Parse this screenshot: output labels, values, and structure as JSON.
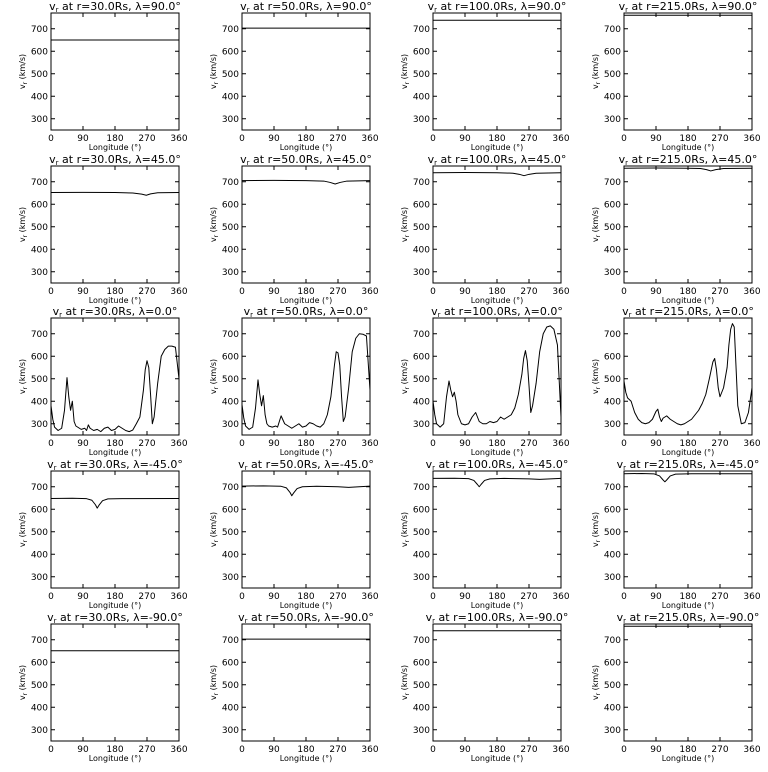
{
  "figure": {
    "background": "#ffffff",
    "line_color": "#000000"
  },
  "chart_data": [
    {
      "type": "line",
      "title": "v",
      "title_sub": "r",
      "title_rest": " at r=30.0Rs, λ=90.0°",
      "xlabel": "Longitude (°)",
      "ylabel": "v",
      "ylabel_sub": "r",
      "ylabel_rest": " (km/s)",
      "xlim": [
        0,
        360
      ],
      "ylim": [
        250,
        770
      ],
      "xticks": [
        0,
        90,
        180,
        270,
        360
      ],
      "yticks": [
        300,
        400,
        500,
        600,
        700
      ],
      "x": [
        0,
        360
      ],
      "y": [
        650,
        650
      ]
    },
    {
      "type": "line",
      "title": "v",
      "title_sub": "r",
      "title_rest": " at r=50.0Rs, λ=90.0°",
      "xlabel": "Longitude (°)",
      "ylabel": "v",
      "ylabel_sub": "r",
      "ylabel_rest": " (km/s)",
      "xlim": [
        0,
        360
      ],
      "ylim": [
        250,
        770
      ],
      "xticks": [
        0,
        90,
        180,
        270,
        360
      ],
      "yticks": [
        300,
        400,
        500,
        600,
        700
      ],
      "x": [
        0,
        360
      ],
      "y": [
        703,
        703
      ]
    },
    {
      "type": "line",
      "title": "v",
      "title_sub": "r",
      "title_rest": " at r=100.0Rs, λ=90.0°",
      "xlabel": "Longitude (°)",
      "ylabel": "v",
      "ylabel_sub": "r",
      "ylabel_rest": " (km/s)",
      "xlim": [
        0,
        360
      ],
      "ylim": [
        250,
        770
      ],
      "xticks": [
        0,
        90,
        180,
        270,
        360
      ],
      "yticks": [
        300,
        400,
        500,
        600,
        700
      ],
      "x": [
        0,
        360
      ],
      "y": [
        738,
        738
      ]
    },
    {
      "type": "line",
      "title": "v",
      "title_sub": "r",
      "title_rest": " at r=215.0Rs, λ=90.0°",
      "xlabel": "Longitude (°)",
      "ylabel": "v",
      "ylabel_sub": "r",
      "ylabel_rest": " (km/s)",
      "xlim": [
        0,
        360
      ],
      "ylim": [
        250,
        770
      ],
      "xticks": [
        0,
        90,
        180,
        270,
        360
      ],
      "yticks": [
        300,
        400,
        500,
        600,
        700
      ],
      "x": [
        0,
        360
      ],
      "y": [
        760,
        760
      ]
    },
    {
      "type": "line",
      "title": "v",
      "title_sub": "r",
      "title_rest": " at r=30.0Rs, λ=45.0°",
      "xlabel": "Longitude (°)",
      "ylabel": "v",
      "ylabel_sub": "r",
      "ylabel_rest": " (km/s)",
      "xlim": [
        0,
        360
      ],
      "ylim": [
        250,
        770
      ],
      "xticks": [
        0,
        90,
        180,
        270,
        360
      ],
      "yticks": [
        300,
        400,
        500,
        600,
        700
      ],
      "x": [
        0,
        90,
        180,
        230,
        255,
        268,
        280,
        300,
        360
      ],
      "y": [
        652,
        653,
        652,
        650,
        645,
        640,
        646,
        651,
        652
      ]
    },
    {
      "type": "line",
      "title": "v",
      "title_sub": "r",
      "title_rest": " at r=50.0Rs, λ=45.0°",
      "xlabel": "Longitude (°)",
      "ylabel": "v",
      "ylabel_sub": "r",
      "ylabel_rest": " (km/s)",
      "xlim": [
        0,
        360
      ],
      "ylim": [
        250,
        770
      ],
      "xticks": [
        0,
        90,
        180,
        270,
        360
      ],
      "yticks": [
        300,
        400,
        500,
        600,
        700
      ],
      "x": [
        0,
        90,
        180,
        230,
        248,
        262,
        276,
        295,
        360
      ],
      "y": [
        705,
        706,
        705,
        703,
        697,
        690,
        697,
        703,
        705
      ]
    },
    {
      "type": "line",
      "title": "v",
      "title_sub": "r",
      "title_rest": " at r=100.0Rs, λ=45.0°",
      "xlabel": "Longitude (°)",
      "ylabel": "v",
      "ylabel_sub": "r",
      "ylabel_rest": " (km/s)",
      "xlim": [
        0,
        360
      ],
      "ylim": [
        250,
        770
      ],
      "xticks": [
        0,
        90,
        180,
        270,
        360
      ],
      "yticks": [
        300,
        400,
        500,
        600,
        700
      ],
      "x": [
        0,
        90,
        180,
        225,
        243,
        256,
        270,
        290,
        360
      ],
      "y": [
        740,
        741,
        740,
        738,
        733,
        727,
        733,
        738,
        740
      ]
    },
    {
      "type": "line",
      "title": "v",
      "title_sub": "r",
      "title_rest": " at r=215.0Rs, λ=45.0°",
      "xlabel": "Longitude (°)",
      "ylabel": "v",
      "ylabel_sub": "r",
      "ylabel_rest": " (km/s)",
      "xlim": [
        0,
        360
      ],
      "ylim": [
        250,
        770
      ],
      "xticks": [
        0,
        90,
        180,
        270,
        360
      ],
      "yticks": [
        300,
        400,
        500,
        600,
        700
      ],
      "x": [
        0,
        90,
        180,
        215,
        232,
        244,
        258,
        280,
        360
      ],
      "y": [
        760,
        761,
        760,
        759,
        754,
        748,
        754,
        759,
        760
      ]
    },
    {
      "type": "line",
      "title": "v",
      "title_sub": "r",
      "title_rest": " at r=30.0Rs, λ=0.0°",
      "xlabel": "Longitude (°)",
      "ylabel": "v",
      "ylabel_sub": "r",
      "ylabel_rest": " (km/s)",
      "xlim": [
        0,
        360
      ],
      "ylim": [
        250,
        770
      ],
      "xticks": [
        0,
        90,
        180,
        270,
        360
      ],
      "yticks": [
        300,
        400,
        500,
        600,
        700
      ],
      "x": [
        0,
        5,
        10,
        20,
        30,
        38,
        45,
        50,
        55,
        60,
        65,
        70,
        75,
        85,
        95,
        100,
        105,
        110,
        120,
        130,
        140,
        150,
        160,
        170,
        180,
        190,
        200,
        210,
        220,
        230,
        240,
        250,
        260,
        265,
        270,
        275,
        280,
        285,
        290,
        300,
        310,
        320,
        330,
        340,
        350,
        360
      ],
      "y": [
        380,
        320,
        285,
        270,
        280,
        360,
        505,
        420,
        360,
        400,
        310,
        290,
        285,
        275,
        280,
        270,
        295,
        280,
        270,
        275,
        265,
        280,
        285,
        270,
        275,
        290,
        280,
        270,
        265,
        272,
        300,
        330,
        450,
        540,
        580,
        550,
        430,
        300,
        330,
        480,
        600,
        630,
        645,
        645,
        640,
        500
      ]
    },
    {
      "type": "line",
      "title": "v",
      "title_sub": "r",
      "title_rest": " at r=50.0Rs, λ=0.0°",
      "xlabel": "Longitude (°)",
      "ylabel": "v",
      "ylabel_sub": "r",
      "ylabel_rest": " (km/s)",
      "xlim": [
        0,
        360
      ],
      "ylim": [
        250,
        770
      ],
      "xticks": [
        0,
        90,
        180,
        270,
        360
      ],
      "yticks": [
        300,
        400,
        500,
        600,
        700
      ],
      "x": [
        0,
        5,
        10,
        20,
        30,
        38,
        45,
        50,
        55,
        60,
        65,
        70,
        75,
        85,
        95,
        100,
        105,
        110,
        120,
        130,
        140,
        150,
        160,
        170,
        180,
        190,
        200,
        210,
        220,
        230,
        240,
        250,
        260,
        265,
        270,
        275,
        280,
        285,
        290,
        300,
        310,
        320,
        330,
        340,
        350,
        360
      ],
      "y": [
        385,
        325,
        290,
        275,
        285,
        370,
        495,
        430,
        380,
        425,
        340,
        300,
        290,
        285,
        290,
        285,
        310,
        335,
        300,
        290,
        280,
        290,
        300,
        285,
        290,
        305,
        300,
        290,
        285,
        300,
        340,
        420,
        560,
        620,
        615,
        560,
        420,
        310,
        330,
        460,
        620,
        680,
        700,
        698,
        690,
        450
      ]
    },
    {
      "type": "line",
      "title": "v",
      "title_sub": "r",
      "title_rest": " at r=100.0Rs, λ=0.0°",
      "xlabel": "Longitude (°)",
      "ylabel": "v",
      "ylabel_sub": "r",
      "ylabel_rest": " (km/s)",
      "xlim": [
        0,
        360
      ],
      "ylim": [
        250,
        770
      ],
      "xticks": [
        0,
        90,
        180,
        270,
        360
      ],
      "yticks": [
        300,
        400,
        500,
        600,
        700
      ],
      "x": [
        0,
        5,
        10,
        20,
        30,
        38,
        45,
        50,
        55,
        60,
        65,
        70,
        80,
        90,
        100,
        110,
        120,
        130,
        140,
        150,
        160,
        170,
        180,
        190,
        200,
        210,
        220,
        230,
        240,
        250,
        255,
        260,
        265,
        270,
        275,
        280,
        290,
        300,
        310,
        320,
        330,
        340,
        350,
        360
      ],
      "y": [
        400,
        340,
        300,
        285,
        300,
        420,
        490,
        450,
        420,
        440,
        400,
        340,
        300,
        295,
        300,
        330,
        350,
        310,
        300,
        300,
        310,
        305,
        310,
        330,
        320,
        330,
        340,
        370,
        430,
        520,
        590,
        625,
        580,
        470,
        350,
        380,
        480,
        620,
        700,
        730,
        735,
        720,
        650,
        330
      ]
    },
    {
      "type": "line",
      "title": "v",
      "title_sub": "r",
      "title_rest": " at r=215.0Rs, λ=0.0°",
      "xlabel": "Longitude (°)",
      "ylabel": "v",
      "ylabel_sub": "r",
      "ylabel_rest": " (km/s)",
      "xlim": [
        0,
        360
      ],
      "ylim": [
        250,
        770
      ],
      "xticks": [
        0,
        90,
        180,
        270,
        360
      ],
      "yticks": [
        300,
        400,
        500,
        600,
        700
      ],
      "x": [
        0,
        5,
        10,
        20,
        30,
        40,
        50,
        60,
        70,
        80,
        90,
        95,
        100,
        105,
        110,
        120,
        130,
        140,
        150,
        160,
        170,
        180,
        190,
        200,
        210,
        220,
        230,
        240,
        250,
        255,
        260,
        265,
        270,
        280,
        290,
        295,
        300,
        305,
        310,
        320,
        330,
        340,
        350,
        360
      ],
      "y": [
        490,
        440,
        415,
        400,
        350,
        320,
        305,
        300,
        305,
        320,
        355,
        365,
        330,
        310,
        325,
        335,
        320,
        310,
        300,
        295,
        300,
        310,
        320,
        340,
        360,
        390,
        430,
        500,
        575,
        590,
        540,
        460,
        420,
        460,
        550,
        650,
        720,
        745,
        730,
        380,
        300,
        305,
        350,
        460
      ]
    },
    {
      "type": "line",
      "title": "v",
      "title_sub": "r",
      "title_rest": " at r=30.0Rs, λ=-45.0°",
      "xlabel": "Longitude (°)",
      "ylabel": "v",
      "ylabel_sub": "r",
      "ylabel_rest": " (km/s)",
      "xlim": [
        0,
        360
      ],
      "ylim": [
        250,
        770
      ],
      "xticks": [
        0,
        90,
        180,
        270,
        360
      ],
      "yticks": [
        300,
        400,
        500,
        600,
        700
      ],
      "x": [
        0,
        60,
        100,
        115,
        125,
        130,
        135,
        145,
        160,
        200,
        360
      ],
      "y": [
        648,
        649,
        647,
        640,
        620,
        605,
        618,
        638,
        646,
        647,
        648
      ]
    },
    {
      "type": "line",
      "title": "v",
      "title_sub": "r",
      "title_rest": " at r=50.0Rs, λ=-45.0°",
      "xlabel": "Longitude (°)",
      "ylabel": "v",
      "ylabel_sub": "r",
      "ylabel_rest": " (km/s)",
      "xlim": [
        0,
        360
      ],
      "ylim": [
        250,
        770
      ],
      "xticks": [
        0,
        90,
        180,
        270,
        360
      ],
      "yticks": [
        300,
        400,
        500,
        600,
        700
      ],
      "x": [
        0,
        60,
        110,
        125,
        135,
        140,
        145,
        155,
        170,
        210,
        270,
        300,
        360
      ],
      "y": [
        703,
        704,
        702,
        695,
        675,
        660,
        672,
        692,
        700,
        702,
        700,
        697,
        703
      ]
    },
    {
      "type": "line",
      "title": "v",
      "title_sub": "r",
      "title_rest": " at r=100.0Rs, λ=-45.0°",
      "xlabel": "Longitude (°)",
      "ylabel": "v",
      "ylabel_sub": "r",
      "ylabel_rest": " (km/s)",
      "xlim": [
        0,
        360
      ],
      "ylim": [
        250,
        770
      ],
      "xticks": [
        0,
        90,
        180,
        270,
        360
      ],
      "yticks": [
        300,
        400,
        500,
        600,
        700
      ],
      "x": [
        0,
        60,
        100,
        115,
        125,
        130,
        135,
        145,
        160,
        200,
        270,
        300,
        360
      ],
      "y": [
        737,
        738,
        736,
        728,
        710,
        700,
        710,
        728,
        735,
        737,
        735,
        733,
        737
      ]
    },
    {
      "type": "line",
      "title": "v",
      "title_sub": "r",
      "title_rest": " at r=215.0Rs, λ=-45.0°",
      "xlabel": "Longitude (°)",
      "ylabel": "v",
      "ylabel_sub": "r",
      "ylabel_rest": " (km/s)",
      "xlim": [
        0,
        360
      ],
      "ylim": [
        250,
        770
      ],
      "xticks": [
        0,
        90,
        180,
        270,
        360
      ],
      "yticks": [
        300,
        400,
        500,
        600,
        700
      ],
      "x": [
        0,
        50,
        85,
        100,
        110,
        115,
        120,
        130,
        145,
        190,
        360
      ],
      "y": [
        758,
        759,
        757,
        748,
        730,
        722,
        730,
        748,
        756,
        758,
        758
      ]
    },
    {
      "type": "line",
      "title": "v",
      "title_sub": "r",
      "title_rest": " at r=30.0Rs, λ=-90.0°",
      "xlabel": "Longitude (°)",
      "ylabel": "v",
      "ylabel_sub": "r",
      "ylabel_rest": " (km/s)",
      "xlim": [
        0,
        360
      ],
      "ylim": [
        250,
        770
      ],
      "xticks": [
        0,
        90,
        180,
        270,
        360
      ],
      "yticks": [
        300,
        400,
        500,
        600,
        700
      ],
      "x": [
        0,
        360
      ],
      "y": [
        651,
        651
      ]
    },
    {
      "type": "line",
      "title": "v",
      "title_sub": "r",
      "title_rest": " at r=50.0Rs, λ=-90.0°",
      "xlabel": "Longitude (°)",
      "ylabel": "v",
      "ylabel_sub": "r",
      "ylabel_rest": " (km/s)",
      "xlim": [
        0,
        360
      ],
      "ylim": [
        250,
        770
      ],
      "xticks": [
        0,
        90,
        180,
        270,
        360
      ],
      "yticks": [
        300,
        400,
        500,
        600,
        700
      ],
      "x": [
        0,
        360
      ],
      "y": [
        703,
        703
      ]
    },
    {
      "type": "line",
      "title": "v",
      "title_sub": "r",
      "title_rest": " at r=100.0Rs, λ=-90.0°",
      "xlabel": "Longitude (°)",
      "ylabel": "v",
      "ylabel_sub": "r",
      "ylabel_rest": " (km/s)",
      "xlim": [
        0,
        360
      ],
      "ylim": [
        250,
        770
      ],
      "xticks": [
        0,
        90,
        180,
        270,
        360
      ],
      "yticks": [
        300,
        400,
        500,
        600,
        700
      ],
      "x": [
        0,
        360
      ],
      "y": [
        740,
        740
      ]
    },
    {
      "type": "line",
      "title": "v",
      "title_sub": "r",
      "title_rest": " at r=215.0Rs, λ=-90.0°",
      "xlabel": "Longitude (°)",
      "ylabel": "v",
      "ylabel_sub": "r",
      "ylabel_rest": " (km/s)",
      "xlim": [
        0,
        360
      ],
      "ylim": [
        250,
        770
      ],
      "xticks": [
        0,
        90,
        180,
        270,
        360
      ],
      "yticks": [
        300,
        400,
        500,
        600,
        700
      ],
      "x": [
        0,
        360
      ],
      "y": [
        760,
        760
      ]
    }
  ]
}
